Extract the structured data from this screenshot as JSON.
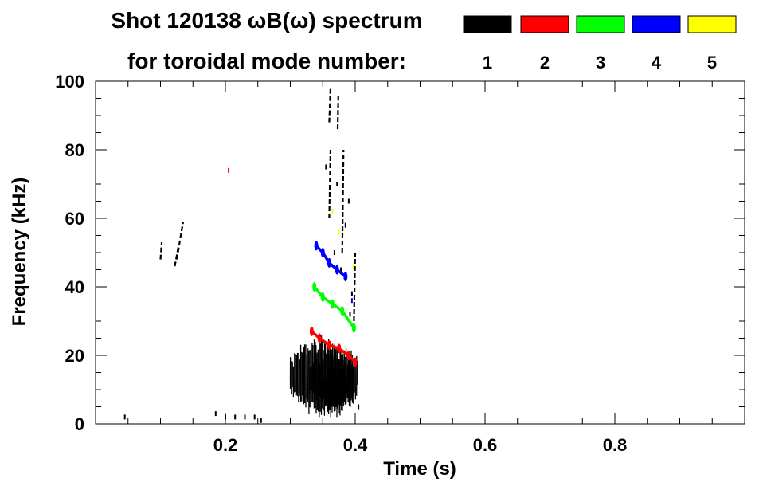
{
  "chart_data": {
    "type": "heatmap",
    "title": "Shot 120138 ωB(ω) spectrum",
    "subtitle": "for toroidal mode number:",
    "xlabel": "Time (s)",
    "ylabel": "Frequency (kHz)",
    "xlim": [
      0,
      1.0
    ],
    "ylim": [
      0,
      100
    ],
    "x_ticks": [
      0.2,
      0.4,
      0.6,
      0.8
    ],
    "x_tick_labels": [
      "0.2",
      "0.4",
      "0.6",
      "0.8"
    ],
    "y_ticks": [
      0,
      20,
      40,
      60,
      80,
      100
    ],
    "y_tick_labels": [
      "0",
      "20",
      "40",
      "60",
      "80",
      "100"
    ],
    "legend_placement": "top-right",
    "legend": [
      {
        "label": "1",
        "color": "#000000"
      },
      {
        "label": "2",
        "color": "#ff0000"
      },
      {
        "label": "3",
        "color": "#00ff00"
      },
      {
        "label": "4",
        "color": "#0000ff"
      },
      {
        "label": "5",
        "color": "#ffff00"
      }
    ],
    "series": [
      {
        "name": "1",
        "color": "#000000",
        "blobs": [
          {
            "t0": 0.3,
            "t1": 0.405,
            "f0": 2,
            "f1": 26
          },
          {
            "t0": 0.33,
            "t1": 0.4,
            "f0": 4,
            "f1": 22
          },
          {
            "t0": 0.35,
            "t1": 0.39,
            "f0": 3,
            "f1": 18
          }
        ],
        "streaks": [
          {
            "t0": 0.125,
            "f0": 48,
            "t1": 0.135,
            "f1": 59
          },
          {
            "t0": 0.122,
            "f0": 46,
            "t1": 0.128,
            "f1": 52
          },
          {
            "t0": 0.1,
            "f0": 48,
            "t1": 0.102,
            "f1": 53
          },
          {
            "t0": 0.36,
            "f0": 88,
            "t1": 0.362,
            "f1": 98
          },
          {
            "t0": 0.373,
            "f0": 86,
            "t1": 0.374,
            "f1": 96
          },
          {
            "t0": 0.36,
            "f0": 60,
            "t1": 0.362,
            "f1": 80
          },
          {
            "t0": 0.38,
            "f0": 50,
            "t1": 0.382,
            "f1": 80
          },
          {
            "t0": 0.398,
            "f0": 30,
            "t1": 0.4,
            "f1": 50
          }
        ],
        "dots": [
          {
            "t": 0.045,
            "f": 2
          },
          {
            "t": 0.185,
            "f": 3
          },
          {
            "t": 0.2,
            "f": 2
          },
          {
            "t": 0.215,
            "f": 2
          },
          {
            "t": 0.23,
            "f": 2
          },
          {
            "t": 0.245,
            "f": 2
          },
          {
            "t": 0.255,
            "f": 1
          },
          {
            "t": 0.365,
            "f": 62
          },
          {
            "t": 0.372,
            "f": 70
          },
          {
            "t": 0.385,
            "f": 58
          },
          {
            "t": 0.39,
            "f": 65
          },
          {
            "t": 0.355,
            "f": 75
          },
          {
            "t": 0.368,
            "f": 50
          },
          {
            "t": 0.378,
            "f": 45
          },
          {
            "t": 0.392,
            "f": 32
          },
          {
            "t": 0.395,
            "f": 38
          },
          {
            "t": 0.405,
            "f": 5
          }
        ]
      },
      {
        "name": "2",
        "color": "#ff0000",
        "path": [
          {
            "t": 0.333,
            "f": 27
          },
          {
            "t": 0.345,
            "f": 25
          },
          {
            "t": 0.36,
            "f": 23
          },
          {
            "t": 0.375,
            "f": 22
          },
          {
            "t": 0.39,
            "f": 20
          },
          {
            "t": 0.4,
            "f": 18
          }
        ],
        "dots": [
          {
            "t": 0.205,
            "f": 74
          }
        ]
      },
      {
        "name": "3",
        "color": "#00ff00",
        "path": [
          {
            "t": 0.337,
            "f": 40
          },
          {
            "t": 0.35,
            "f": 37
          },
          {
            "t": 0.365,
            "f": 35
          },
          {
            "t": 0.38,
            "f": 33
          },
          {
            "t": 0.398,
            "f": 28
          }
        ]
      },
      {
        "name": "4",
        "color": "#0000ff",
        "path": [
          {
            "t": 0.34,
            "f": 52
          },
          {
            "t": 0.35,
            "f": 50
          },
          {
            "t": 0.36,
            "f": 47
          },
          {
            "t": 0.372,
            "f": 45
          },
          {
            "t": 0.385,
            "f": 43
          }
        ],
        "dots": [
          {
            "t": 0.395,
            "f": 36
          }
        ]
      },
      {
        "name": "5",
        "color": "#ffff00",
        "dots": [
          {
            "t": 0.375,
            "f": 56
          },
          {
            "t": 0.397,
            "f": 46
          },
          {
            "t": 0.365,
            "f": 62
          }
        ]
      }
    ]
  }
}
